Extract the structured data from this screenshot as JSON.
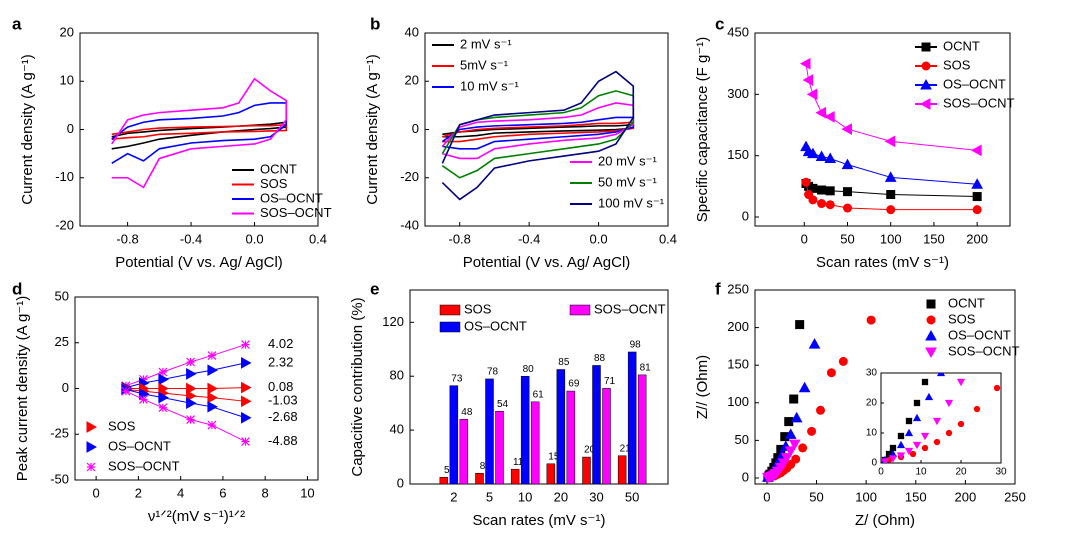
{
  "chart_data": [
    {
      "type": "line",
      "panel_label": "a",
      "xlabel": "Potential (V vs. Ag/ AgCl)",
      "ylabel": "Current density (A g⁻¹)",
      "x": [
        -0.9,
        -0.8,
        -0.7,
        -0.6,
        -0.4,
        -0.2,
        -0.1,
        0,
        0.1,
        0.2,
        0.2,
        0.1,
        0,
        -0.2,
        -0.4,
        -0.6,
        -0.7,
        -0.8,
        -0.9
      ],
      "xlim": [
        -1.1,
        0.4
      ],
      "xticks": [
        -0.8,
        -0.4,
        {
          "value": 0,
          "label": "0.0"
        },
        0.4
      ],
      "ylim": [
        -20,
        20
      ],
      "yticks": [
        -20,
        -10,
        0,
        10,
        20
      ],
      "series": [
        {
          "name": "OCNT",
          "color": "#000000",
          "values": [
            -1.5,
            -0.8,
            -0.5,
            -0.2,
            0.2,
            0.5,
            0.7,
            0.9,
            1.1,
            1.5,
            0.5,
            0.2,
            0,
            -0.5,
            -1.2,
            -2,
            -2.8,
            -3.5,
            -4
          ]
        },
        {
          "name": "SOS",
          "color": "#ff0000",
          "values": [
            -1,
            -0.5,
            0,
            0.3,
            0.5,
            0.6,
            0.7,
            0.8,
            0.8,
            1,
            -0.2,
            -0.3,
            -0.4,
            -0.5,
            -0.8,
            -1,
            -1.5,
            -1.7,
            -2
          ]
        },
        {
          "name": "OS–OCNT",
          "color": "#0000ff",
          "values": [
            -2,
            0.5,
            1.5,
            2,
            2.3,
            2.8,
            3.5,
            5,
            5.5,
            5.5,
            1,
            -1.5,
            -2,
            -2.3,
            -2.8,
            -4,
            -6.5,
            -5,
            -7
          ]
        },
        {
          "name": "SOS–OCNT",
          "color": "#ff00ff",
          "values": [
            -3,
            2,
            3,
            3.5,
            4,
            4.5,
            5.5,
            10.5,
            8,
            6,
            2,
            -2,
            -3,
            -3.5,
            -4,
            -6,
            -12,
            -10,
            -10
          ]
        }
      ]
    },
    {
      "type": "line",
      "panel_label": "b",
      "xlabel": "Potential (V vs. Ag/ AgCl)",
      "ylabel": "Current density (A g⁻¹)",
      "x": [
        -0.9,
        -0.8,
        -0.7,
        -0.6,
        -0.4,
        -0.2,
        -0.1,
        0,
        0.1,
        0.2,
        0.2,
        0.1,
        0,
        -0.2,
        -0.4,
        -0.6,
        -0.7,
        -0.8,
        -0.9
      ],
      "xlim": [
        -1.0,
        0.4
      ],
      "xticks": [
        -0.8,
        -0.4,
        {
          "value": 0,
          "label": "0.0"
        },
        0.4
      ],
      "ylim": [
        -40,
        40
      ],
      "yticks": [
        -40,
        -20,
        0,
        20,
        40
      ],
      "series": [
        {
          "name": "2 mV s⁻¹",
          "color": "#000000",
          "values": [
            -2,
            -1,
            -0.5,
            0,
            0.5,
            1,
            1.2,
            1.5,
            1.5,
            2,
            0.5,
            0,
            -0.3,
            -0.6,
            -1,
            -1.5,
            -2.5,
            -3,
            -3
          ]
        },
        {
          "name": "5mV  s⁻¹",
          "color": "#ff0000",
          "values": [
            -3,
            -1,
            0,
            0.5,
            1,
            1.5,
            2,
            2.5,
            2.5,
            3,
            0.5,
            -0.5,
            -1,
            -1.5,
            -2,
            -3,
            -4,
            -5,
            -5
          ]
        },
        {
          "name": "10 mV  s⁻¹",
          "color": "#0000ff",
          "values": [
            -5,
            0,
            1,
            1.5,
            2,
            2.5,
            3,
            4,
            5,
            5,
            1,
            -1,
            -2,
            -3,
            -4,
            -5,
            -8,
            -8,
            -7
          ]
        },
        {
          "name": "20 mV  s⁻¹",
          "color": "#ff00ff",
          "values": [
            -7,
            1,
            3,
            3.5,
            4,
            5,
            6,
            9,
            11,
            10,
            2,
            -2,
            -3.5,
            -4.5,
            -6,
            -8,
            -12,
            -12,
            -10
          ]
        },
        {
          "name": "50 mV  s⁻¹",
          "color": "#008000",
          "values": [
            -10,
            2,
            4,
            5,
            6,
            7,
            9,
            14,
            16,
            14,
            3,
            -4,
            -6,
            -8,
            -10,
            -12,
            -17,
            -20,
            -15
          ]
        },
        {
          "name": "100 mV  s⁻¹",
          "color": "#000080",
          "values": [
            -14,
            2,
            4,
            6,
            7,
            8,
            11,
            20,
            24,
            18,
            5,
            -6,
            -9,
            -11,
            -13,
            -16,
            -24,
            -29,
            -22
          ]
        }
      ]
    },
    {
      "type": "line",
      "panel_label": "c",
      "xlabel": "Scan rates (mV s⁻¹)",
      "ylabel": "Specific capacitance (F g⁻¹)",
      "x": [
        2,
        5,
        10,
        20,
        30,
        50,
        100,
        200
      ],
      "xlim": [
        -57,
        238
      ],
      "xticks": [
        0,
        50,
        100,
        150,
        200
      ],
      "ylim": [
        -22,
        450
      ],
      "yticks": [
        0,
        150,
        300,
        450
      ],
      "series": [
        {
          "name": "OCNT",
          "color": "#000000",
          "marker": "square",
          "values": [
            82,
            75,
            70,
            66,
            64,
            62,
            55,
            50
          ]
        },
        {
          "name": "SOS",
          "color": "#ff0000",
          "marker": "circle",
          "values": [
            85,
            55,
            42,
            33,
            30,
            22,
            18,
            18
          ]
        },
        {
          "name": "OS–OCNT",
          "color": "#0000ff",
          "marker": "triangle",
          "values": [
            172,
            160,
            155,
            148,
            143,
            128,
            97,
            80
          ]
        },
        {
          "name": "SOS–OCNT",
          "color": "#ff00ff",
          "marker": "triangle-left",
          "values": [
            375,
            335,
            300,
            255,
            245,
            215,
            185,
            163
          ]
        }
      ]
    },
    {
      "type": "line",
      "panel_label": "d",
      "xlabel": "ν¹ᐟ²(mV s⁻¹)¹ᐟ²",
      "ylabel": "Peak current density (A g⁻¹)",
      "x": [
        1.41,
        2.24,
        3.16,
        4.47,
        5.48,
        7.07
      ],
      "xlim": [
        -1,
        10.5
      ],
      "xticks": [
        0,
        2,
        4,
        6,
        8,
        10
      ],
      "ylim": [
        -50,
        50
      ],
      "yticks": [
        -50,
        -25,
        0,
        25,
        50
      ],
      "series": [
        {
          "color": "#ff00ff",
          "marker": "asterisk",
          "values": [
            1.5,
            5,
            9,
            14.5,
            18,
            24
          ],
          "slope": 4.02
        },
        {
          "color": "#0000ff",
          "marker": "triangle-right",
          "values": [
            0.5,
            3,
            5,
            8,
            10,
            14
          ],
          "slope": 2.32
        },
        {
          "color": "#ff0000",
          "marker": "triangle-right",
          "values": [
            0,
            0,
            0,
            0,
            0,
            0.5
          ],
          "slope": 0.08
        },
        {
          "name": "SOS",
          "color": "#ff0000",
          "marker": "triangle-right",
          "values": [
            -0.5,
            -1.5,
            -2.5,
            -4,
            -5,
            -7
          ],
          "slope": -1.03
        },
        {
          "name": "OS–OCNT",
          "color": "#0000ff",
          "marker": "triangle-right",
          "values": [
            -0.5,
            -3,
            -5,
            -8,
            -10,
            -16
          ],
          "slope": -2.68
        },
        {
          "name": "SOS–OCNT",
          "color": "#ff00ff",
          "marker": "asterisk",
          "values": [
            -1.5,
            -6,
            -10.5,
            -17,
            -20,
            -29
          ],
          "slope": -4.88
        }
      ]
    },
    {
      "type": "bar",
      "panel_label": "e",
      "xlabel": "Scan rates (mV s⁻¹)",
      "ylabel": "Capacitive contribution (%)",
      "categories": [
        "2",
        "5",
        "10",
        "20",
        "30",
        "50"
      ],
      "ylim": [
        0,
        144
      ],
      "yticks": [
        0,
        40,
        80,
        120
      ],
      "series": [
        {
          "name": "SOS",
          "color": "#ff0000",
          "values": [
            5,
            8,
            11,
            15,
            20,
            21
          ]
        },
        {
          "name": "OS–OCNT",
          "color": "#0000ff",
          "values": [
            73,
            78,
            80,
            85,
            88,
            98
          ]
        },
        {
          "name": "SOS–OCNT",
          "color": "#ff00ff",
          "values": [
            48,
            54,
            61,
            69,
            71,
            81
          ]
        }
      ]
    },
    {
      "type": "scatter",
      "panel_label": "f",
      "xlabel": "Z/ (Ohm)",
      "ylabel": "Z// (Ohm)",
      "xlim": [
        -12,
        250
      ],
      "xticks": [
        0,
        50,
        100,
        150,
        200,
        250
      ],
      "ylim": [
        -8,
        250
      ],
      "yticks": [
        0,
        50,
        100,
        150,
        200,
        250
      ],
      "inset": {
        "xlim": [
          0,
          30
        ],
        "xticks": [
          0,
          10,
          20,
          30
        ],
        "ylim": [
          0,
          30
        ],
        "yticks": [
          0,
          10,
          20,
          30
        ]
      },
      "series": [
        {
          "name": "OCNT",
          "color": "#000000",
          "marker": "square",
          "x": [
            1,
            2,
            3,
            5,
            7,
            9,
            11,
            14,
            18,
            22,
            27,
            33
          ],
          "values": [
            1,
            3,
            5,
            9,
            14,
            20,
            27,
            38,
            55,
            75,
            105,
            204
          ]
        },
        {
          "name": "SOS",
          "color": "#ff0000",
          "marker": "circle",
          "x": [
            2,
            5,
            8,
            11,
            14,
            17,
            20,
            24,
            29,
            36,
            45,
            54,
            65,
            77,
            105
          ],
          "values": [
            1,
            2,
            3,
            5,
            7,
            10,
            13,
            18,
            25,
            40,
            62,
            90,
            140,
            155,
            210
          ]
        },
        {
          "name": "OS–OCNT",
          "color": "#0000ff",
          "marker": "triangle",
          "x": [
            1,
            3,
            5,
            7,
            9,
            12,
            15,
            19,
            24,
            30,
            38,
            48
          ],
          "values": [
            1,
            3,
            6,
            10,
            15,
            22,
            30,
            42,
            58,
            80,
            120,
            178
          ]
        },
        {
          "name": "SOS–OCNT",
          "color": "#ff00ff",
          "marker": "triangle-down",
          "x": [
            1,
            3,
            5,
            7,
            9,
            11,
            14,
            17,
            20,
            24,
            28
          ],
          "values": [
            0.5,
            1.5,
            2.5,
            4,
            6,
            9,
            14,
            20,
            27,
            36,
            45
          ]
        }
      ]
    }
  ]
}
